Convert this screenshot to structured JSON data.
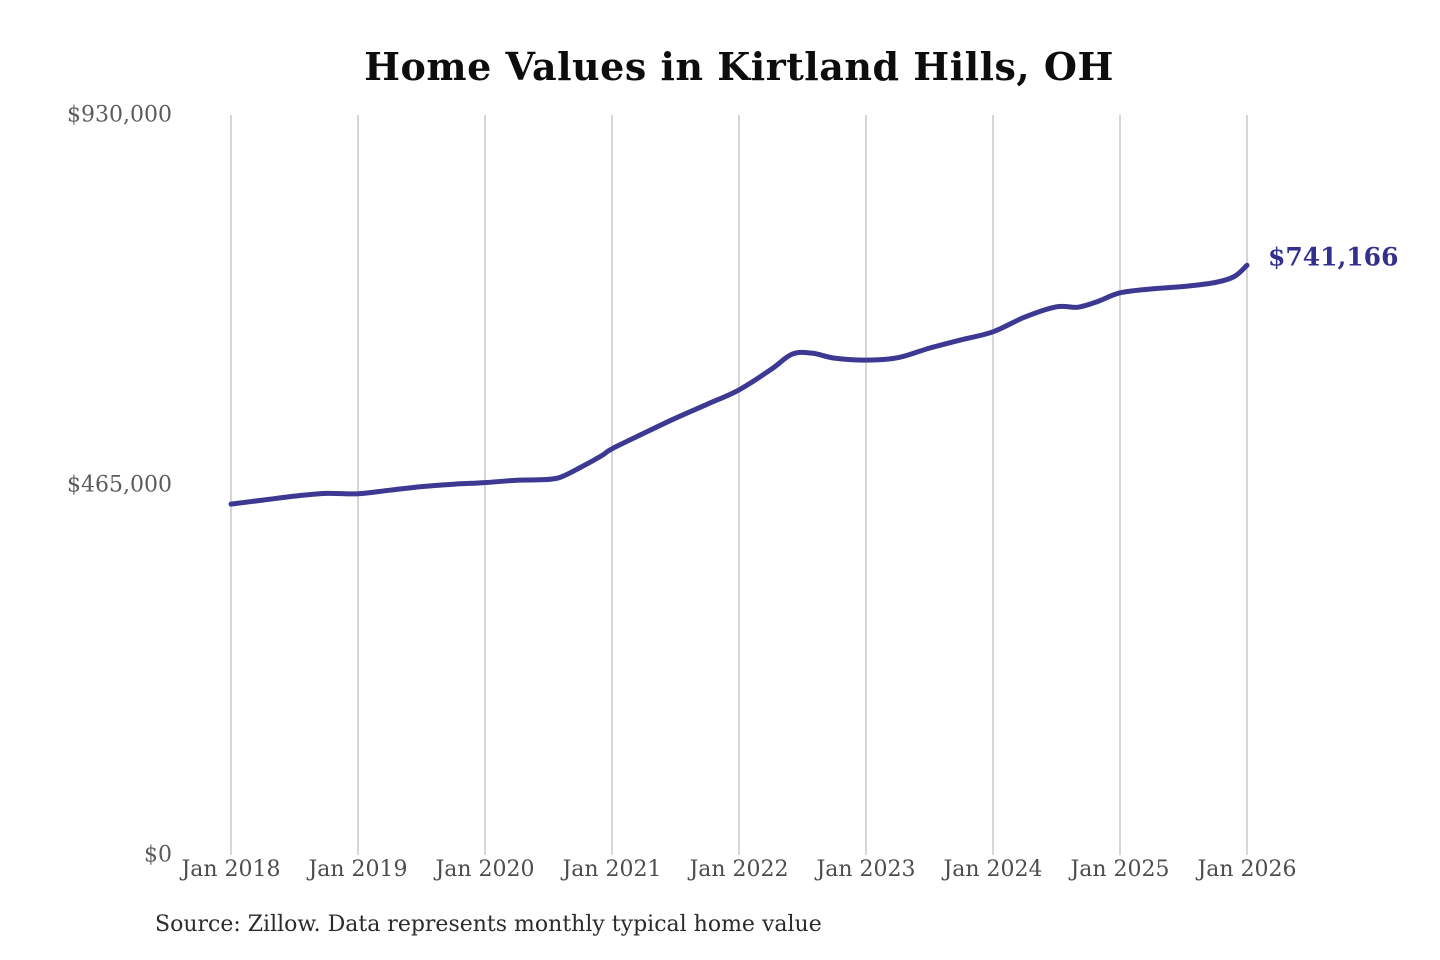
{
  "title": "Home Values in Kirtland Hills, OH",
  "end_label": "$741,166",
  "source_note": "Source: Zillow. Data represents monthly typical home value",
  "colors": {
    "background": "#ffffff",
    "title": "#0d0d0d",
    "line": "#3d3891",
    "end_label": "#332f8c",
    "grid": "#c9c9c9",
    "y_axis_text": "#5c5c5c",
    "x_axis_text": "#4d4d4d",
    "source_text": "#2b2b2b"
  },
  "chart_data": {
    "type": "line",
    "title": "Home Values in Kirtland Hills, OH",
    "xlabel": "",
    "ylabel": "",
    "xlim": [
      2018,
      2026
    ],
    "ylim": [
      0,
      930000
    ],
    "grid": "vertical-only",
    "legend": "none",
    "x_ticks": [
      {
        "v": 2018,
        "label": "Jan 2018"
      },
      {
        "v": 2019,
        "label": "Jan 2019"
      },
      {
        "v": 2020,
        "label": "Jan 2020"
      },
      {
        "v": 2021,
        "label": "Jan 2021"
      },
      {
        "v": 2022,
        "label": "Jan 2022"
      },
      {
        "v": 2023,
        "label": "Jan 2023"
      },
      {
        "v": 2024,
        "label": "Jan 2024"
      },
      {
        "v": 2025,
        "label": "Jan 2025"
      },
      {
        "v": 2026,
        "label": "Jan 2026"
      }
    ],
    "y_ticks": [
      {
        "v": 0,
        "label": "$0"
      },
      {
        "v": 465000,
        "label": "$465,000"
      },
      {
        "v": 930000,
        "label": "$930,000"
      }
    ],
    "series": [
      {
        "name": "Monthly typical home value",
        "points": [
          [
            2018.0,
            441000
          ],
          [
            2018.25,
            446000
          ],
          [
            2018.5,
            451000
          ],
          [
            2018.75,
            454500
          ],
          [
            2019.0,
            454000
          ],
          [
            2019.25,
            458500
          ],
          [
            2019.5,
            463000
          ],
          [
            2019.75,
            466000
          ],
          [
            2020.0,
            468000
          ],
          [
            2020.25,
            471000
          ],
          [
            2020.42,
            471500
          ],
          [
            2020.58,
            474000
          ],
          [
            2020.75,
            487000
          ],
          [
            2020.92,
            502000
          ],
          [
            2021.0,
            510500
          ],
          [
            2021.25,
            530000
          ],
          [
            2021.5,
            549000
          ],
          [
            2021.75,
            566500
          ],
          [
            2022.0,
            584500
          ],
          [
            2022.25,
            610000
          ],
          [
            2022.42,
            629500
          ],
          [
            2022.58,
            630500
          ],
          [
            2022.75,
            624500
          ],
          [
            2023.0,
            622000
          ],
          [
            2023.25,
            625000
          ],
          [
            2023.5,
            637000
          ],
          [
            2023.75,
            647500
          ],
          [
            2024.0,
            657500
          ],
          [
            2024.25,
            676000
          ],
          [
            2024.5,
            689000
          ],
          [
            2024.67,
            688500
          ],
          [
            2024.83,
            696000
          ],
          [
            2025.0,
            706500
          ],
          [
            2025.25,
            711500
          ],
          [
            2025.5,
            714500
          ],
          [
            2025.75,
            719500
          ],
          [
            2025.9,
            727000
          ],
          [
            2026.0,
            741166
          ]
        ]
      }
    ],
    "end_value": 741166
  }
}
